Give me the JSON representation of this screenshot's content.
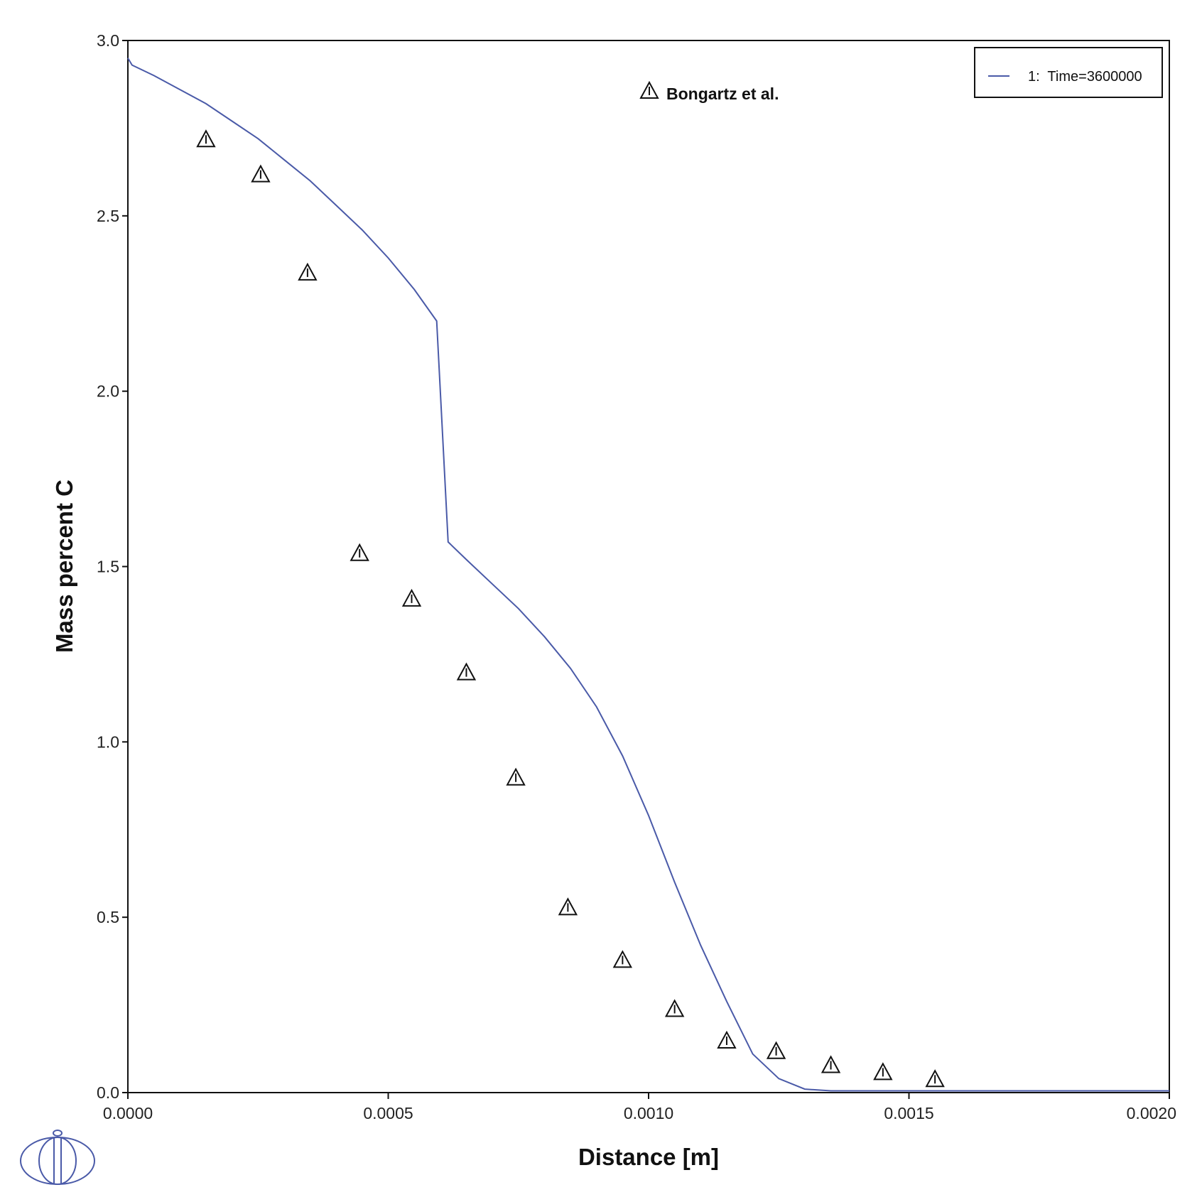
{
  "chart_data": {
    "type": "line",
    "title": "",
    "xlabel": "Distance [m]",
    "ylabel": "Mass percent C",
    "xlim": [
      0,
      0.002
    ],
    "ylim": [
      0,
      3.0
    ],
    "x_ticks": [
      0,
      0.0005,
      0.001,
      0.0015,
      0.002
    ],
    "x_tick_labels": [
      "0.0000",
      "0.0005",
      "0.0010",
      "0.0015",
      "0.0020"
    ],
    "y_ticks": [
      0,
      0.5,
      1.0,
      1.5,
      2.0,
      2.5,
      3.0
    ],
    "y_tick_labels": [
      "0.0",
      "0.5",
      "1.0",
      "1.5",
      "2.0",
      "2.5",
      "3.0"
    ],
    "grid": false,
    "legend_position": "top-right",
    "series": [
      {
        "name": "1:  Time=3600000",
        "kind": "line",
        "color": "#4a5aa8",
        "x": [
          0,
          8e-06,
          5e-05,
          0.0001,
          0.00015,
          0.0002,
          0.00025,
          0.0003,
          0.00035,
          0.0004,
          0.00045,
          0.0005,
          0.00055,
          0.000593,
          0.000615,
          0.00065,
          0.0007,
          0.00075,
          0.0008,
          0.00085,
          0.0009,
          0.00095,
          0.001,
          0.00105,
          0.0011,
          0.00115,
          0.0012,
          0.00125,
          0.0013,
          0.00135,
          0.0014,
          0.0015,
          0.0016,
          0.0018,
          0.002
        ],
        "y": [
          2.95,
          2.93,
          2.9,
          2.86,
          2.82,
          2.77,
          2.72,
          2.66,
          2.6,
          2.53,
          2.46,
          2.38,
          2.29,
          2.2,
          1.57,
          1.52,
          1.45,
          1.38,
          1.3,
          1.21,
          1.1,
          0.96,
          0.79,
          0.6,
          0.42,
          0.26,
          0.11,
          0.04,
          0.01,
          0.005,
          0.005,
          0.005,
          0.005,
          0.005,
          0.005
        ]
      },
      {
        "name": "Bongartz et al.",
        "kind": "scatter",
        "marker": "triangle",
        "color": "#111111",
        "x": [
          0.00015,
          0.000255,
          0.000345,
          0.000445,
          0.000545,
          0.00065,
          0.000745,
          0.000845,
          0.00095,
          0.00105,
          0.00115,
          0.001245,
          0.00135,
          0.00145,
          0.00155
        ],
        "y": [
          2.72,
          2.62,
          2.34,
          1.54,
          1.41,
          1.2,
          0.9,
          0.53,
          0.38,
          0.24,
          0.15,
          0.12,
          0.08,
          0.06,
          0.04
        ]
      }
    ]
  }
}
